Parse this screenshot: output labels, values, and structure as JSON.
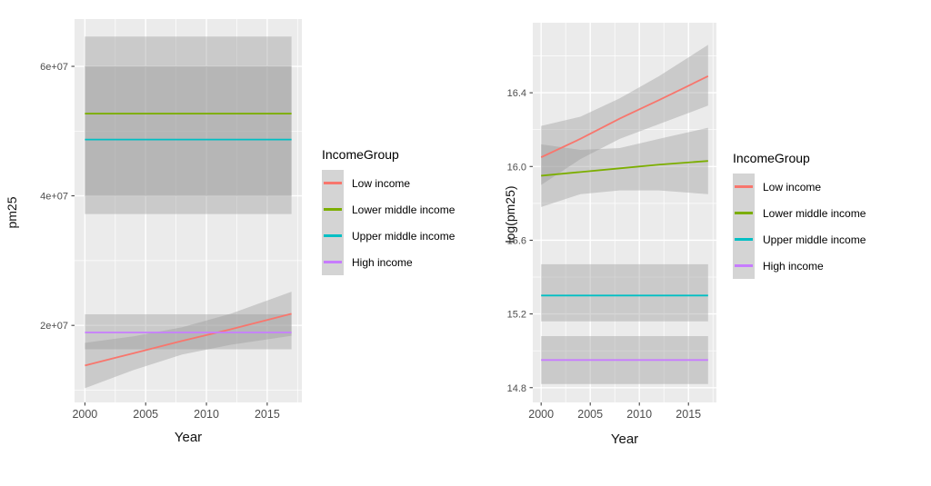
{
  "style": {
    "panel_bg": "#ebebeb",
    "grid_major_color": "#ffffff",
    "grid_minor_color": "#f7f7f7",
    "ribbon_color": "#999999",
    "ribbon_opacity": 0.4,
    "tick_mark_color": "#333333",
    "tick_label_color": "#4d4d4d",
    "axis_title_color": "#111111",
    "legend_key_bg": "#d4d4d4"
  },
  "legend": {
    "title": "IncomeGroup",
    "entries": [
      {
        "label": "Low income",
        "color": "#F8766D"
      },
      {
        "label": "Lower middle income",
        "color": "#7CAE00"
      },
      {
        "label": "Upper middle income",
        "color": "#00BFC4"
      },
      {
        "label": "High income",
        "color": "#C77CFF"
      }
    ]
  },
  "chart_data": [
    {
      "type": "line",
      "title": "",
      "xlabel": "Year",
      "ylabel": "pm25",
      "xlim": [
        1999.15,
        2017.85
      ],
      "ylim": [
        8100000,
        67300000
      ],
      "grid": true,
      "legend_position": "right",
      "xticks": {
        "values": [
          2000,
          2005,
          2010,
          2015
        ],
        "labels": [
          "2000",
          "2005",
          "2010",
          "2015"
        ]
      },
      "yticks": {
        "values": [
          20000000,
          40000000,
          60000000
        ],
        "labels": [
          "2e+07",
          "4e+07",
          "6e+07"
        ]
      },
      "xminor": [
        2002.5,
        2007.5,
        2012.5,
        2017.5
      ],
      "yminor": [
        10000000,
        30000000,
        50000000
      ],
      "series": [
        {
          "name": "Low income",
          "color": "#F8766D",
          "x": [
            2000,
            2004,
            2008,
            2012,
            2017
          ],
          "y": [
            13800000,
            15700000,
            17600000,
            19400000,
            21800000
          ],
          "ci_lower": [
            10300000,
            13100000,
            15500000,
            17000000,
            18400000
          ],
          "ci_upper": [
            17300000,
            18300000,
            19700000,
            21800000,
            25200000
          ]
        },
        {
          "name": "Lower middle income",
          "color": "#7CAE00",
          "x": [
            2000,
            2017
          ],
          "y": [
            52700000,
            52700000
          ],
          "ci_lower": [
            40000000,
            40000000
          ],
          "ci_upper": [
            64600000,
            64600000
          ]
        },
        {
          "name": "Upper middle income",
          "color": "#00BFC4",
          "x": [
            2000,
            2017
          ],
          "y": [
            48700000,
            48700000
          ],
          "ci_lower": [
            37200000,
            37200000
          ],
          "ci_upper": [
            60000000,
            60000000
          ]
        },
        {
          "name": "High income",
          "color": "#C77CFF",
          "x": [
            2000,
            2017
          ],
          "y": [
            18900000,
            18900000
          ],
          "ci_lower": [
            16300000,
            16300000
          ],
          "ci_upper": [
            21700000,
            21700000
          ]
        }
      ]
    },
    {
      "type": "line",
      "title": "",
      "xlabel": "Year",
      "ylabel": "log(pm25)",
      "xlim": [
        1999.15,
        2017.85
      ],
      "ylim": [
        14.72,
        16.78
      ],
      "grid": true,
      "legend_position": "right",
      "xticks": {
        "values": [
          2000,
          2005,
          2010,
          2015
        ],
        "labels": [
          "2000",
          "2005",
          "2010",
          "2015"
        ]
      },
      "yticks": {
        "values": [
          14.8,
          15.2,
          15.6,
          16.0,
          16.4
        ],
        "labels": [
          "14.8",
          "15.2",
          "15.6",
          "16.0",
          "16.4"
        ]
      },
      "xminor": [
        2002.5,
        2007.5,
        2012.5,
        2017.5
      ],
      "yminor": [
        15.0,
        15.4,
        15.8,
        16.2,
        16.6
      ],
      "series": [
        {
          "name": "Low income",
          "color": "#F8766D",
          "x": [
            2000,
            2004,
            2008,
            2012,
            2017
          ],
          "y": [
            16.05,
            16.15,
            16.26,
            16.36,
            16.49
          ],
          "ci_lower": [
            15.9,
            16.04,
            16.15,
            16.23,
            16.33
          ],
          "ci_upper": [
            16.22,
            16.27,
            16.37,
            16.49,
            16.66
          ]
        },
        {
          "name": "Lower middle income",
          "color": "#7CAE00",
          "x": [
            2000,
            2004,
            2008,
            2012,
            2017
          ],
          "y": [
            15.95,
            15.97,
            15.99,
            16.01,
            16.03
          ],
          "ci_lower": [
            15.78,
            15.85,
            15.87,
            15.87,
            15.85
          ],
          "ci_upper": [
            16.12,
            16.09,
            16.1,
            16.15,
            16.21
          ]
        },
        {
          "name": "Upper middle income",
          "color": "#00BFC4",
          "x": [
            2000,
            2017
          ],
          "y": [
            15.3,
            15.3
          ],
          "ci_lower": [
            15.16,
            15.16
          ],
          "ci_upper": [
            15.47,
            15.47
          ]
        },
        {
          "name": "High income",
          "color": "#C77CFF",
          "x": [
            2000,
            2017
          ],
          "y": [
            14.95,
            14.95
          ],
          "ci_lower": [
            14.82,
            14.82
          ],
          "ci_upper": [
            15.08,
            15.08
          ]
        }
      ]
    }
  ]
}
